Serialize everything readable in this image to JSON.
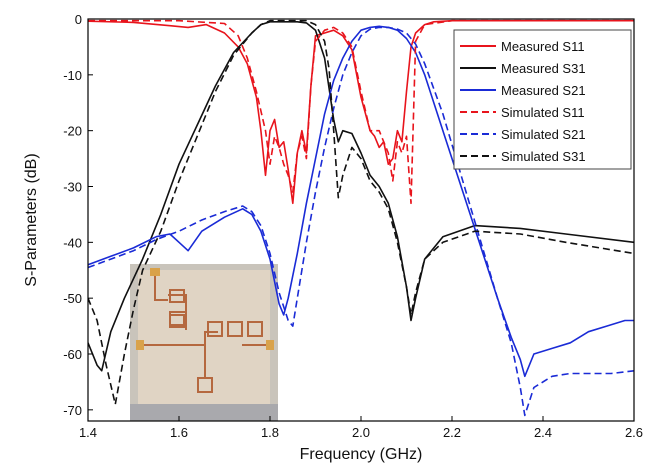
{
  "chart_data": {
    "type": "line",
    "title": "",
    "xlabel": "Frequency (GHz)",
    "ylabel": "S-Parameters (dB)",
    "xlim": [
      1.4,
      2.6
    ],
    "ylim": [
      -72,
      0
    ],
    "xticks": [
      "1.4",
      "1.6",
      "1.8",
      "2.0",
      "2.2",
      "2.4",
      "2.6"
    ],
    "yticks": [
      "0",
      "-10",
      "-20",
      "-30",
      "-40",
      "-50",
      "-60",
      "-70"
    ],
    "grid": false,
    "legend_position": "top-right",
    "inset": "photograph of the fabricated microstrip circuit (bottom-left)",
    "series": [
      {
        "name": "Measured S11",
        "color": "#e8141c",
        "dash": "solid",
        "x": [
          1.4,
          1.5,
          1.58,
          1.62,
          1.66,
          1.7,
          1.73,
          1.75,
          1.77,
          1.78,
          1.79,
          1.8,
          1.81,
          1.82,
          1.83,
          1.84,
          1.85,
          1.86,
          1.87,
          1.88,
          1.89,
          1.9,
          1.92,
          1.94,
          1.96,
          1.98,
          2.0,
          2.02,
          2.03,
          2.04,
          2.05,
          2.06,
          2.07,
          2.08,
          2.09,
          2.1,
          2.11,
          2.12,
          2.14,
          2.16,
          2.2,
          2.4,
          2.6
        ],
        "y": [
          -0.4,
          -0.6,
          -1.2,
          -1.5,
          -1.0,
          -2.5,
          -5.0,
          -8.0,
          -14,
          -20,
          -28,
          -20,
          -18,
          -23,
          -22,
          -27,
          -33,
          -24,
          -20,
          -24,
          -12,
          -3.0,
          -2.5,
          -2.0,
          -3.0,
          -5.5,
          -14,
          -20,
          -21,
          -23,
          -22,
          -26,
          -25,
          -20,
          -22,
          -13,
          -5.0,
          -2.5,
          -1.0,
          -0.5,
          -0.3,
          -0.3,
          -0.3
        ]
      },
      {
        "name": "Measured S31",
        "color": "#111111",
        "dash": "solid",
        "x": [
          1.4,
          1.42,
          1.43,
          1.45,
          1.48,
          1.52,
          1.56,
          1.6,
          1.64,
          1.68,
          1.72,
          1.76,
          1.78,
          1.8,
          1.82,
          1.84,
          1.86,
          1.88,
          1.9,
          1.92,
          1.94,
          1.95,
          1.96,
          1.98,
          2.0,
          2.02,
          2.04,
          2.06,
          2.08,
          2.1,
          2.11,
          2.12,
          2.14,
          2.18,
          2.25,
          2.35,
          2.45,
          2.6
        ],
        "y": [
          -58,
          -62,
          -63,
          -56,
          -50,
          -43,
          -35,
          -26,
          -19,
          -12,
          -6.0,
          -2.5,
          -1.0,
          -0.5,
          -0.5,
          -0.5,
          -0.5,
          -0.7,
          -2.0,
          -7.0,
          -18,
          -22,
          -20,
          -20.5,
          -24,
          -28,
          -30,
          -33,
          -39,
          -48,
          -54,
          -50,
          -43,
          -39,
          -37,
          -37.5,
          -38.5,
          -40
        ]
      },
      {
        "name": "Measured S21",
        "color": "#1a2bd6",
        "dash": "solid",
        "x": [
          1.4,
          1.45,
          1.5,
          1.55,
          1.58,
          1.6,
          1.62,
          1.65,
          1.7,
          1.74,
          1.76,
          1.78,
          1.8,
          1.82,
          1.83,
          1.84,
          1.86,
          1.88,
          1.9,
          1.92,
          1.94,
          1.96,
          1.98,
          2.0,
          2.02,
          2.04,
          2.06,
          2.08,
          2.1,
          2.12,
          2.14,
          2.18,
          2.22,
          2.26,
          2.3,
          2.33,
          2.35,
          2.36,
          2.38,
          2.42,
          2.46,
          2.5,
          2.54,
          2.58,
          2.6
        ],
        "y": [
          -44,
          -42.5,
          -41,
          -39,
          -38.5,
          -40,
          -41.5,
          -38,
          -35.5,
          -34,
          -35,
          -38,
          -43,
          -51,
          -53,
          -50,
          -42,
          -33,
          -25,
          -17,
          -11,
          -7.0,
          -4.0,
          -2.0,
          -1.5,
          -1.3,
          -1.5,
          -2.0,
          -3.5,
          -6.0,
          -10,
          -20,
          -30,
          -40,
          -50,
          -57,
          -61,
          -64,
          -60,
          -59,
          -58,
          -56,
          -55,
          -54,
          -54
        ]
      },
      {
        "name": "Simulated S11",
        "color": "#e8141c",
        "dash": "dashed",
        "x": [
          1.4,
          1.6,
          1.7,
          1.73,
          1.75,
          1.77,
          1.79,
          1.8,
          1.81,
          1.82,
          1.83,
          1.84,
          1.85,
          1.86,
          1.87,
          1.88,
          1.89,
          1.9,
          1.92,
          1.94,
          1.96,
          1.98,
          2.0,
          2.02,
          2.04,
          2.06,
          2.07,
          2.08,
          2.09,
          2.1,
          2.11,
          2.12,
          2.14,
          2.2,
          2.6
        ],
        "y": [
          -0.3,
          -0.3,
          -0.8,
          -3.0,
          -7.0,
          -13,
          -20,
          -26,
          -21,
          -23,
          -26,
          -28,
          -31,
          -24,
          -21,
          -25,
          -12,
          -4.0,
          -2.0,
          -1.5,
          -2.5,
          -5.0,
          -13,
          -20,
          -20,
          -24,
          -29,
          -22,
          -24,
          -21,
          -33,
          -4.0,
          -1.0,
          -0.3,
          -0.3
        ]
      },
      {
        "name": "Simulated S21",
        "color": "#1a2bd6",
        "dash": "dashed",
        "x": [
          1.4,
          1.45,
          1.5,
          1.55,
          1.6,
          1.65,
          1.7,
          1.74,
          1.76,
          1.78,
          1.8,
          1.82,
          1.84,
          1.85,
          1.86,
          1.88,
          1.9,
          1.92,
          1.94,
          1.96,
          1.98,
          2.0,
          2.02,
          2.04,
          2.06,
          2.08,
          2.1,
          2.12,
          2.14,
          2.18,
          2.22,
          2.26,
          2.3,
          2.33,
          2.35,
          2.36,
          2.38,
          2.42,
          2.46,
          2.5,
          2.55,
          2.6
        ],
        "y": [
          -44.5,
          -43,
          -41.5,
          -39.5,
          -38,
          -36,
          -34.5,
          -33.5,
          -34.5,
          -37,
          -42,
          -49,
          -54,
          -55,
          -50,
          -40,
          -31,
          -23,
          -16,
          -10,
          -6.0,
          -3.0,
          -1.8,
          -1.5,
          -1.5,
          -1.8,
          -2.5,
          -4.5,
          -8.0,
          -17,
          -28,
          -39,
          -50,
          -58,
          -66,
          -71,
          -66,
          -64,
          -63.5,
          -63.5,
          -63.5,
          -63
        ]
      },
      {
        "name": "Simulated S31",
        "color": "#111111",
        "dash": "dashed",
        "x": [
          1.4,
          1.42,
          1.44,
          1.46,
          1.48,
          1.5,
          1.52,
          1.56,
          1.6,
          1.64,
          1.68,
          1.72,
          1.76,
          1.78,
          1.8,
          1.82,
          1.84,
          1.86,
          1.88,
          1.9,
          1.92,
          1.93,
          1.94,
          1.95,
          1.96,
          1.98,
          2.0,
          2.02,
          2.04,
          2.06,
          2.08,
          2.1,
          2.11,
          2.12,
          2.14,
          2.18,
          2.25,
          2.35,
          2.45,
          2.6
        ],
        "y": [
          -50,
          -54,
          -62,
          -69,
          -60,
          -52,
          -45,
          -38,
          -29,
          -21,
          -13,
          -6.5,
          -2.5,
          -1.0,
          -0.3,
          -0.3,
          -0.3,
          -0.3,
          -0.3,
          -1.0,
          -4.0,
          -9.0,
          -20,
          -32,
          -28,
          -23,
          -25,
          -29,
          -31,
          -34,
          -40,
          -48,
          -53,
          -49,
          -43,
          -40,
          -38,
          -38.5,
          -40,
          -42
        ]
      }
    ]
  }
}
